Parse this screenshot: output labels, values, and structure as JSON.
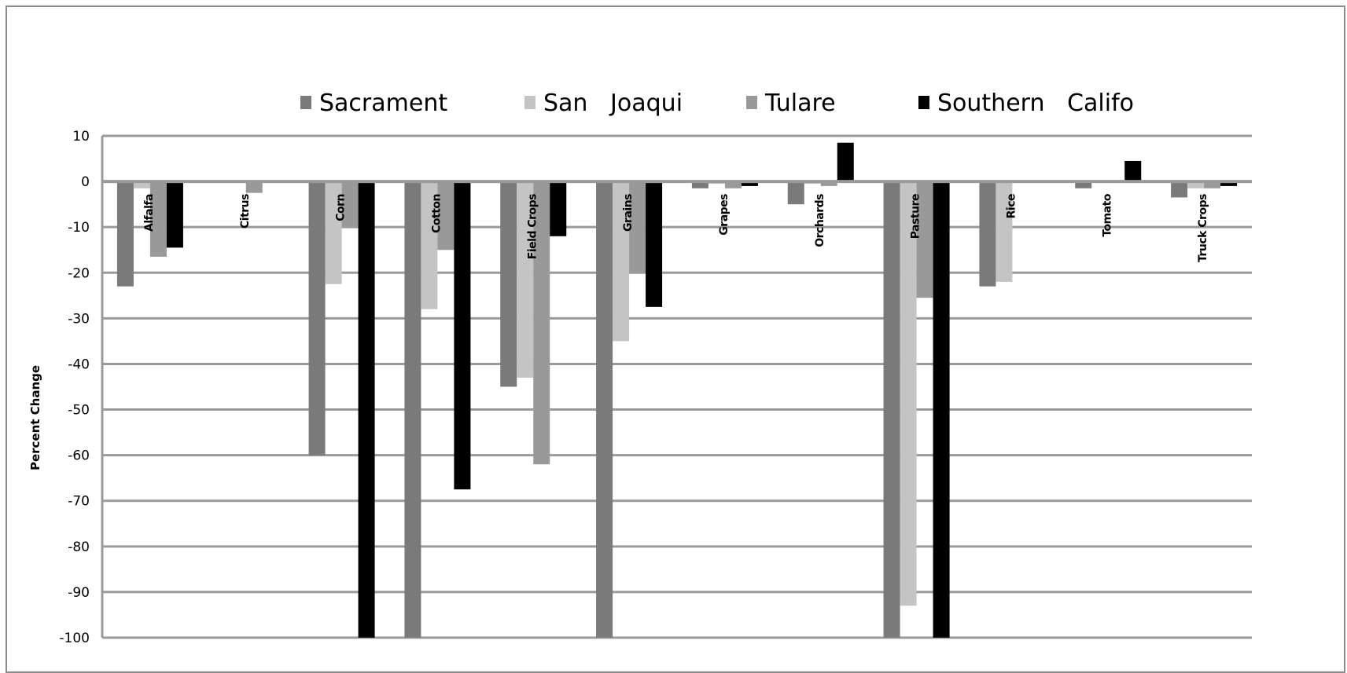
{
  "chart_data": {
    "type": "bar",
    "ylabel": "Percent Change",
    "ylim": [
      -100,
      10
    ],
    "yticks": [
      10,
      0,
      -10,
      -20,
      -30,
      -40,
      -50,
      -60,
      -70,
      -80,
      -90,
      -100
    ],
    "grid": true,
    "legend_position": "top",
    "categories": [
      "Alfalfa",
      "Citrus",
      "Corn",
      "Cotton",
      "Field Crops",
      "Grains",
      "Grapes",
      "Orchards",
      "Pasture",
      "Rice",
      "Tomato",
      "Truck Crops"
    ],
    "series": [
      {
        "name": "Sacrament",
        "color": "#7a7a7a",
        "values": [
          -23,
          0,
          -60,
          -100,
          -45,
          -100,
          -1.5,
          -5,
          -100,
          -23,
          -1.5,
          -3.5
        ]
      },
      {
        "name": "San   Joaqui",
        "color": "#c4c4c4",
        "values": [
          -1.5,
          0,
          -22.5,
          -28,
          -43,
          -35,
          -0.5,
          -0.5,
          -93,
          -22,
          0,
          -1.5
        ]
      },
      {
        "name": "Tulare",
        "color": "#999999",
        "values": [
          -16.5,
          -2.5,
          -10,
          -15,
          -62,
          -20,
          -1.5,
          -1,
          -25.5,
          0,
          0,
          -1.5
        ]
      },
      {
        "name": "Southern   Califo",
        "color": "#000000",
        "values": [
          -14.5,
          0,
          -100,
          -67.5,
          -12,
          -27.5,
          -1,
          8.5,
          -100,
          0,
          4.5,
          -1
        ]
      }
    ]
  }
}
